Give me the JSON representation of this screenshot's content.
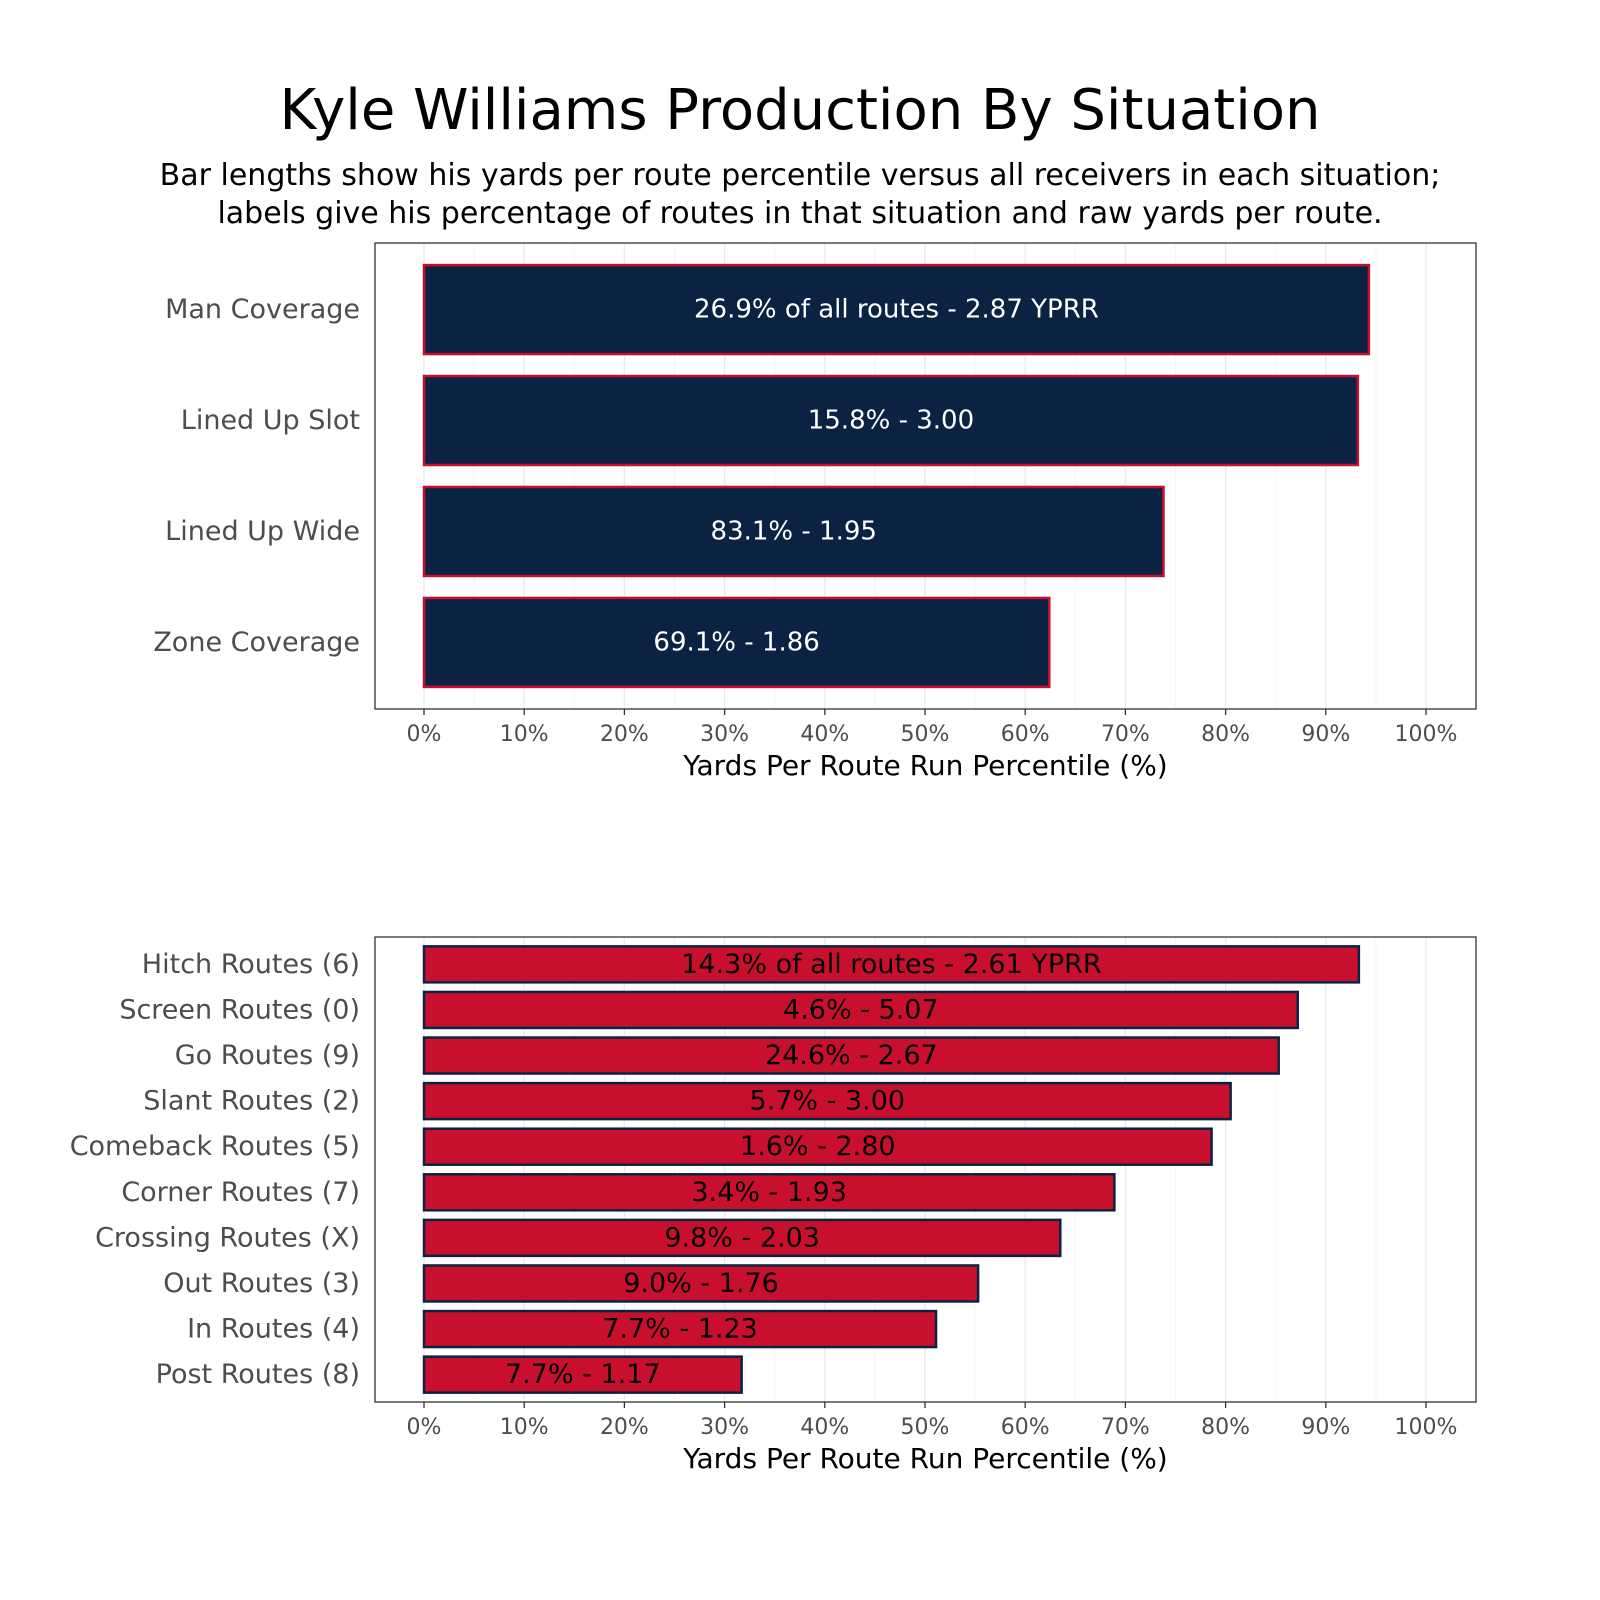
{
  "title": "Kyle Williams Production By Situation",
  "subtitle_lines": [
    "Bar lengths show his yards per route percentile versus all receivers in each situation;",
    "labels give his percentage of routes in that situation and raw yards per route."
  ],
  "colors": {
    "navy": "#0b2243",
    "red": "#c8102e",
    "grid": "#ebebeb",
    "axis_text": "#4d4d4d"
  },
  "chart_data": [
    {
      "type": "bar",
      "orientation": "horizontal",
      "categories": [
        "Man Coverage",
        "Lined Up Slot",
        "Lined Up Wide",
        "Zone Coverage"
      ],
      "values": [
        94.3,
        93.2,
        73.8,
        62.4
      ],
      "bar_labels": [
        "26.9% of all routes - 2.87 YPRR",
        "15.8% - 3.00",
        "83.1% - 1.95",
        "69.1% - 1.86"
      ],
      "title": "",
      "xlabel": "Yards Per Route Run Percentile (%)",
      "ylabel": "",
      "xlim": [
        0,
        100
      ],
      "xticks": [
        "0%",
        "10%",
        "20%",
        "30%",
        "40%",
        "50%",
        "60%",
        "70%",
        "80%",
        "90%",
        "100%"
      ],
      "grid": true,
      "bar_fill": "#0b2243",
      "bar_outline": "#c8102e",
      "label_color": "#ffffff"
    },
    {
      "type": "bar",
      "orientation": "horizontal",
      "categories": [
        "Hitch Routes (6)",
        "Screen Routes (0)",
        "Go Routes (9)",
        "Slant Routes (2)",
        "Comeback Routes (5)",
        "Corner Routes (7)",
        "Crossing Routes (X)",
        "Out Routes (3)",
        "In Routes (4)",
        "Post Routes (8)"
      ],
      "values": [
        93.3,
        87.2,
        85.3,
        80.5,
        78.6,
        68.9,
        63.5,
        55.3,
        51.1,
        31.7
      ],
      "bar_labels": [
        "14.3% of all routes - 2.61 YPRR",
        "4.6% - 5.07",
        "24.6% - 2.67",
        "5.7% - 3.00",
        "1.6% - 2.80",
        "3.4% - 1.93",
        "9.8% - 2.03",
        "9.0% - 1.76",
        "7.7% - 1.23",
        "7.7% - 1.17"
      ],
      "title": "",
      "xlabel": "Yards Per Route Run Percentile (%)",
      "ylabel": "",
      "xlim": [
        0,
        100
      ],
      "xticks": [
        "0%",
        "10%",
        "20%",
        "30%",
        "40%",
        "50%",
        "60%",
        "70%",
        "80%",
        "90%",
        "100%"
      ],
      "grid": true,
      "bar_fill": "#c8102e",
      "bar_outline": "#0b2243",
      "label_color": "#000000"
    }
  ]
}
